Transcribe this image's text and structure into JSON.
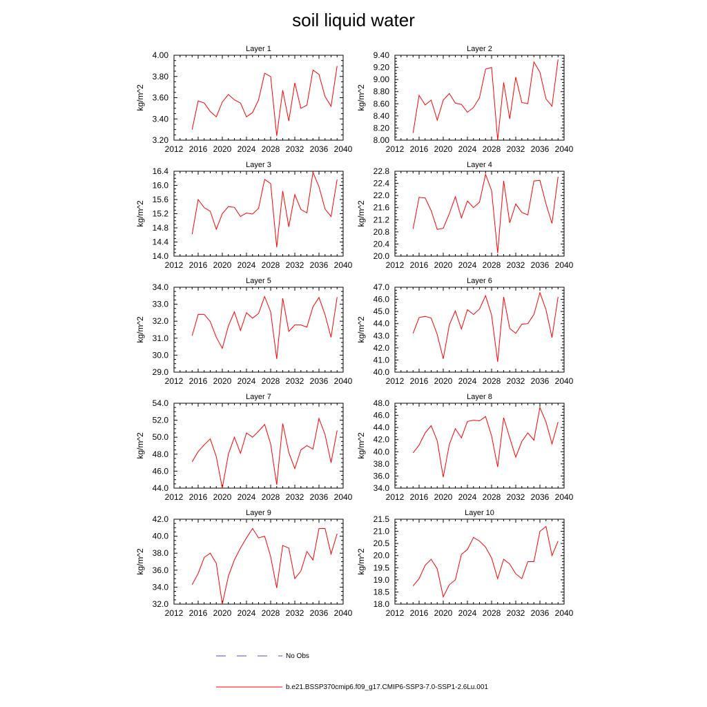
{
  "title": "soil liquid water",
  "chart_data": [
    {
      "type": "line",
      "title": "Layer 1",
      "xlabel": "",
      "ylabel": "kg/m^2",
      "xlim": [
        2012,
        2040
      ],
      "ylim": [
        3.2,
        4.0
      ],
      "xticks": [
        "2012",
        "2016",
        "2020",
        "2024",
        "2028",
        "2032",
        "2036",
        "2040"
      ],
      "yticks": [
        "3.20",
        "3.40",
        "3.60",
        "3.80",
        "4.00"
      ],
      "series": [
        {
          "color": "#ff0000",
          "x": [
            2015,
            2016,
            2017,
            2018,
            2019,
            2020,
            2021,
            2022,
            2023,
            2024,
            2025,
            2026,
            2027,
            2028,
            2029,
            2030,
            2031,
            2032,
            2033,
            2034,
            2035,
            2036,
            2037,
            2038,
            2039
          ],
          "y": [
            3.3,
            3.57,
            3.55,
            3.47,
            3.42,
            3.56,
            3.63,
            3.58,
            3.55,
            3.42,
            3.46,
            3.58,
            3.83,
            3.8,
            3.24,
            3.67,
            3.38,
            3.74,
            3.5,
            3.53,
            3.86,
            3.82,
            3.61,
            3.52,
            3.9
          ]
        }
      ]
    },
    {
      "type": "line",
      "title": "Layer 2",
      "xlabel": "",
      "ylabel": "kg/m^2",
      "xlim": [
        2012,
        2040
      ],
      "ylim": [
        8.0,
        9.4
      ],
      "xticks": [
        "2012",
        "2016",
        "2020",
        "2024",
        "2028",
        "2032",
        "2036",
        "2040"
      ],
      "yticks": [
        "8.00",
        "8.20",
        "8.40",
        "8.60",
        "8.80",
        "9.00",
        "9.20",
        "9.40"
      ],
      "series": [
        {
          "color": "#ff0000",
          "x": [
            2015,
            2016,
            2017,
            2018,
            2019,
            2020,
            2021,
            2022,
            2023,
            2024,
            2025,
            2026,
            2027,
            2028,
            2029,
            2030,
            2031,
            2032,
            2033,
            2034,
            2035,
            2036,
            2037,
            2038,
            2039
          ],
          "y": [
            8.12,
            8.74,
            8.58,
            8.66,
            8.33,
            8.66,
            8.77,
            8.61,
            8.59,
            8.46,
            8.54,
            8.7,
            9.17,
            9.2,
            8.0,
            8.95,
            8.35,
            9.04,
            8.62,
            8.6,
            9.29,
            9.12,
            8.68,
            8.56,
            9.33
          ]
        }
      ]
    },
    {
      "type": "line",
      "title": "Layer 3",
      "xlabel": "",
      "ylabel": "kg/m^2",
      "xlim": [
        2012,
        2040
      ],
      "ylim": [
        14.0,
        16.4
      ],
      "xticks": [
        "2012",
        "2016",
        "2020",
        "2024",
        "2028",
        "2032",
        "2036",
        "2040"
      ],
      "yticks": [
        "14.0",
        "14.4",
        "14.8",
        "15.2",
        "15.6",
        "16.0",
        "16.4"
      ],
      "series": [
        {
          "color": "#ff0000",
          "x": [
            2015,
            2016,
            2017,
            2018,
            2019,
            2020,
            2021,
            2022,
            2023,
            2024,
            2025,
            2026,
            2027,
            2028,
            2029,
            2030,
            2031,
            2032,
            2033,
            2034,
            2035,
            2036,
            2037,
            2038,
            2039
          ],
          "y": [
            14.62,
            15.6,
            15.37,
            15.27,
            14.76,
            15.2,
            15.4,
            15.38,
            15.12,
            15.22,
            15.19,
            15.35,
            16.17,
            16.05,
            14.25,
            15.84,
            14.83,
            15.74,
            15.32,
            15.22,
            16.37,
            15.96,
            15.33,
            15.12,
            16.17
          ]
        }
      ]
    },
    {
      "type": "line",
      "title": "Layer 4",
      "xlabel": "",
      "ylabel": "kg/m^2",
      "xlim": [
        2012,
        2040
      ],
      "ylim": [
        20.0,
        22.8
      ],
      "xticks": [
        "2012",
        "2016",
        "2020",
        "2024",
        "2028",
        "2032",
        "2036",
        "2040"
      ],
      "yticks": [
        "20.0",
        "20.4",
        "20.8",
        "21.2",
        "21.6",
        "22.0",
        "22.4",
        "22.8"
      ],
      "series": [
        {
          "color": "#ff0000",
          "x": [
            2015,
            2016,
            2017,
            2018,
            2019,
            2020,
            2021,
            2022,
            2023,
            2024,
            2025,
            2026,
            2027,
            2028,
            2029,
            2030,
            2031,
            2032,
            2033,
            2034,
            2035,
            2036,
            2037,
            2038,
            2039
          ],
          "y": [
            20.9,
            21.94,
            21.92,
            21.5,
            20.88,
            20.92,
            21.4,
            21.96,
            21.26,
            21.82,
            21.6,
            21.78,
            22.7,
            22.16,
            20.1,
            22.48,
            21.1,
            21.72,
            21.44,
            21.36,
            22.48,
            22.5,
            21.72,
            21.08,
            22.62
          ]
        }
      ]
    },
    {
      "type": "line",
      "title": "Layer 5",
      "xlabel": "",
      "ylabel": "kg/m^2",
      "xlim": [
        2012,
        2040
      ],
      "ylim": [
        29.0,
        34.0
      ],
      "xticks": [
        "2012",
        "2016",
        "2020",
        "2024",
        "2028",
        "2032",
        "2036",
        "2040"
      ],
      "yticks": [
        "29.0",
        "30.0",
        "31.0",
        "32.0",
        "33.0",
        "34.0"
      ],
      "series": [
        {
          "color": "#ff0000",
          "x": [
            2015,
            2016,
            2017,
            2018,
            2019,
            2020,
            2021,
            2022,
            2023,
            2024,
            2025,
            2026,
            2027,
            2028,
            2029,
            2030,
            2031,
            2032,
            2033,
            2034,
            2035,
            2036,
            2037,
            2038,
            2039
          ],
          "y": [
            31.15,
            32.4,
            32.4,
            31.98,
            31.05,
            30.4,
            31.72,
            32.55,
            31.45,
            32.5,
            32.18,
            32.45,
            33.45,
            32.55,
            29.78,
            33.35,
            31.4,
            31.78,
            31.78,
            31.65,
            32.85,
            33.4,
            32.38,
            31.05,
            33.42
          ]
        }
      ]
    },
    {
      "type": "line",
      "title": "Layer 6",
      "xlabel": "",
      "ylabel": "kg/m^2",
      "xlim": [
        2012,
        2040
      ],
      "ylim": [
        40.0,
        47.0
      ],
      "xticks": [
        "2012",
        "2016",
        "2020",
        "2024",
        "2028",
        "2032",
        "2036",
        "2040"
      ],
      "yticks": [
        "40.0",
        "41.0",
        "42.0",
        "43.0",
        "44.0",
        "45.0",
        "46.0",
        "47.0"
      ],
      "series": [
        {
          "color": "#ff0000",
          "x": [
            2015,
            2016,
            2017,
            2018,
            2019,
            2020,
            2021,
            2022,
            2023,
            2024,
            2025,
            2026,
            2027,
            2028,
            2029,
            2030,
            2031,
            2032,
            2033,
            2034,
            2035,
            2036,
            2037,
            2038,
            2039
          ],
          "y": [
            43.2,
            44.5,
            44.6,
            44.45,
            43.1,
            41.1,
            43.9,
            45.05,
            43.55,
            45.15,
            44.75,
            45.2,
            46.3,
            44.7,
            40.85,
            46.2,
            43.6,
            43.2,
            43.95,
            44.0,
            44.75,
            46.55,
            45.15,
            42.85,
            46.2
          ]
        }
      ]
    },
    {
      "type": "line",
      "title": "Layer 7",
      "xlabel": "",
      "ylabel": "kg/m^2",
      "xlim": [
        2012,
        2040
      ],
      "ylim": [
        44.0,
        54.0
      ],
      "xticks": [
        "2012",
        "2016",
        "2020",
        "2024",
        "2028",
        "2032",
        "2036",
        "2040"
      ],
      "yticks": [
        "44.0",
        "46.0",
        "48.0",
        "50.0",
        "52.0",
        "54.0"
      ],
      "series": [
        {
          "color": "#ff0000",
          "x": [
            2015,
            2016,
            2017,
            2018,
            2019,
            2020,
            2021,
            2022,
            2023,
            2024,
            2025,
            2026,
            2027,
            2028,
            2029,
            2030,
            2031,
            2032,
            2033,
            2034,
            2035,
            2036,
            2037,
            2038,
            2039
          ],
          "y": [
            47.1,
            48.3,
            49.1,
            49.8,
            47.7,
            44.0,
            48.0,
            50.0,
            48.1,
            50.5,
            50.0,
            50.7,
            51.5,
            49.2,
            44.4,
            51.6,
            48.2,
            46.3,
            48.5,
            49.0,
            48.6,
            52.2,
            50.3,
            47.0,
            50.8
          ]
        }
      ]
    },
    {
      "type": "line",
      "title": "Layer 8",
      "xlabel": "",
      "ylabel": "kg/m^2",
      "xlim": [
        2012,
        2040
      ],
      "ylim": [
        34.0,
        48.0
      ],
      "xticks": [
        "2012",
        "2016",
        "2020",
        "2024",
        "2028",
        "2032",
        "2036",
        "2040"
      ],
      "yticks": [
        "34.0",
        "36.0",
        "38.0",
        "40.0",
        "42.0",
        "44.0",
        "46.0",
        "48.0"
      ],
      "series": [
        {
          "color": "#ff0000",
          "x": [
            2015,
            2016,
            2017,
            2018,
            2019,
            2020,
            2021,
            2022,
            2023,
            2024,
            2025,
            2026,
            2027,
            2028,
            2029,
            2030,
            2031,
            2032,
            2033,
            2034,
            2035,
            2036,
            2037,
            2038,
            2039
          ],
          "y": [
            39.8,
            41.1,
            43.1,
            44.3,
            41.8,
            35.8,
            41.2,
            43.8,
            42.3,
            45.0,
            45.2,
            45.1,
            45.8,
            42.6,
            37.5,
            45.6,
            42.3,
            39.1,
            41.7,
            43.1,
            41.9,
            47.3,
            44.9,
            41.3,
            44.9
          ]
        }
      ]
    },
    {
      "type": "line",
      "title": "Layer 9",
      "xlabel": "",
      "ylabel": "kg/m^2",
      "xlim": [
        2012,
        2040
      ],
      "ylim": [
        32.0,
        42.0
      ],
      "xticks": [
        "2012",
        "2016",
        "2020",
        "2024",
        "2028",
        "2032",
        "2036",
        "2040"
      ],
      "yticks": [
        "32.0",
        "34.0",
        "36.0",
        "38.0",
        "40.0",
        "42.0"
      ],
      "series": [
        {
          "color": "#ff0000",
          "x": [
            2015,
            2016,
            2017,
            2018,
            2019,
            2020,
            2021,
            2022,
            2023,
            2024,
            2025,
            2026,
            2027,
            2028,
            2029,
            2030,
            2031,
            2032,
            2033,
            2034,
            2035,
            2036,
            2037,
            2038,
            2039
          ],
          "y": [
            34.3,
            35.6,
            37.5,
            38.0,
            36.8,
            32.0,
            35.3,
            37.2,
            38.6,
            39.8,
            40.9,
            39.8,
            40.0,
            37.6,
            33.9,
            38.9,
            38.6,
            35.0,
            35.9,
            38.2,
            37.2,
            40.9,
            40.9,
            37.9,
            40.3
          ]
        }
      ]
    },
    {
      "type": "line",
      "title": "Layer 10",
      "xlabel": "",
      "ylabel": "kg/m^2",
      "xlim": [
        2012,
        2040
      ],
      "ylim": [
        18.0,
        21.5
      ],
      "xticks": [
        "2012",
        "2016",
        "2020",
        "2024",
        "2028",
        "2032",
        "2036",
        "2040"
      ],
      "yticks": [
        "18.0",
        "18.5",
        "19.0",
        "19.5",
        "20.0",
        "20.5",
        "21.0",
        "21.5"
      ],
      "series": [
        {
          "color": "#ff0000",
          "x": [
            2015,
            2016,
            2017,
            2018,
            2019,
            2020,
            2021,
            2022,
            2023,
            2024,
            2025,
            2026,
            2027,
            2028,
            2029,
            2030,
            2031,
            2032,
            2033,
            2034,
            2035,
            2036,
            2037,
            2038,
            2039
          ],
          "y": [
            18.75,
            19.05,
            19.6,
            19.85,
            19.45,
            18.3,
            18.8,
            19.0,
            20.05,
            20.25,
            20.75,
            20.6,
            20.35,
            19.9,
            19.05,
            19.85,
            19.65,
            19.25,
            19.05,
            19.75,
            19.75,
            21.0,
            21.2,
            20.0,
            20.6
          ]
        }
      ]
    }
  ],
  "legend": [
    {
      "label": "No Obs",
      "color": "#4a4ad8",
      "style": "dashed"
    },
    {
      "label": "b.e21.BSSP370cmip6.f09_g17.CMIP6-SSP3-7.0-SSP1-2.6Lu.001",
      "color": "#ff0000",
      "style": "solid"
    }
  ]
}
